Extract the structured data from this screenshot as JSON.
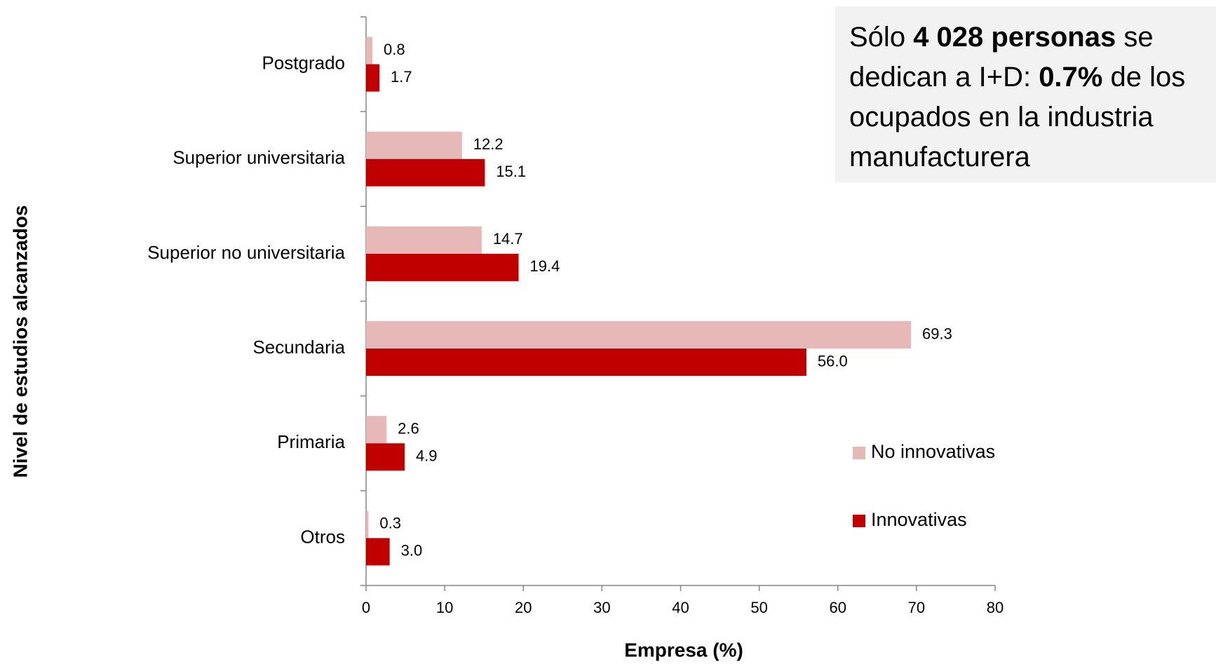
{
  "chart_data": {
    "type": "barh",
    "categories": [
      "Postgrado",
      "Superior universitaria",
      "Superior no universitaria",
      "Secundaria",
      "Primaria",
      "Otros"
    ],
    "series": [
      {
        "name": "No innovativas",
        "color": "#e6b8b7",
        "values": [
          0.8,
          12.2,
          14.7,
          69.3,
          2.6,
          0.3
        ],
        "value_labels": [
          "0.8",
          "12.2",
          "14.7",
          "69.3",
          "2.6",
          "0.3"
        ]
      },
      {
        "name": "Innovativas",
        "color": "#c00000",
        "values": [
          1.7,
          15.1,
          19.4,
          56,
          4.9,
          3
        ],
        "value_labels": [
          "1.7",
          "15.1",
          "19.4",
          "56.0",
          "4.9",
          "3.0"
        ]
      }
    ],
    "xlim": [
      0,
      80
    ],
    "xticks": [
      0,
      10,
      20,
      30,
      40,
      50,
      60,
      70,
      80
    ],
    "xlabel": "Empresa (%)",
    "ylabel": "Nivel de estudios alcanzados",
    "legend": "lower right",
    "annotation": [
      [
        {
          "text": "Sólo ",
          "bold": false
        },
        {
          "text": "4 028 personas",
          "bold": true
        },
        {
          "text": " se",
          "bold": false
        }
      ],
      [
        {
          "text": "dedican a I+D: ",
          "bold": false
        },
        {
          "text": "0.7%",
          "bold": true
        },
        {
          "text": " de los",
          "bold": false
        }
      ],
      [
        {
          "text": "ocupados en la industria",
          "bold": false
        }
      ],
      [
        {
          "text": "manufacturera",
          "bold": false
        }
      ]
    ]
  }
}
